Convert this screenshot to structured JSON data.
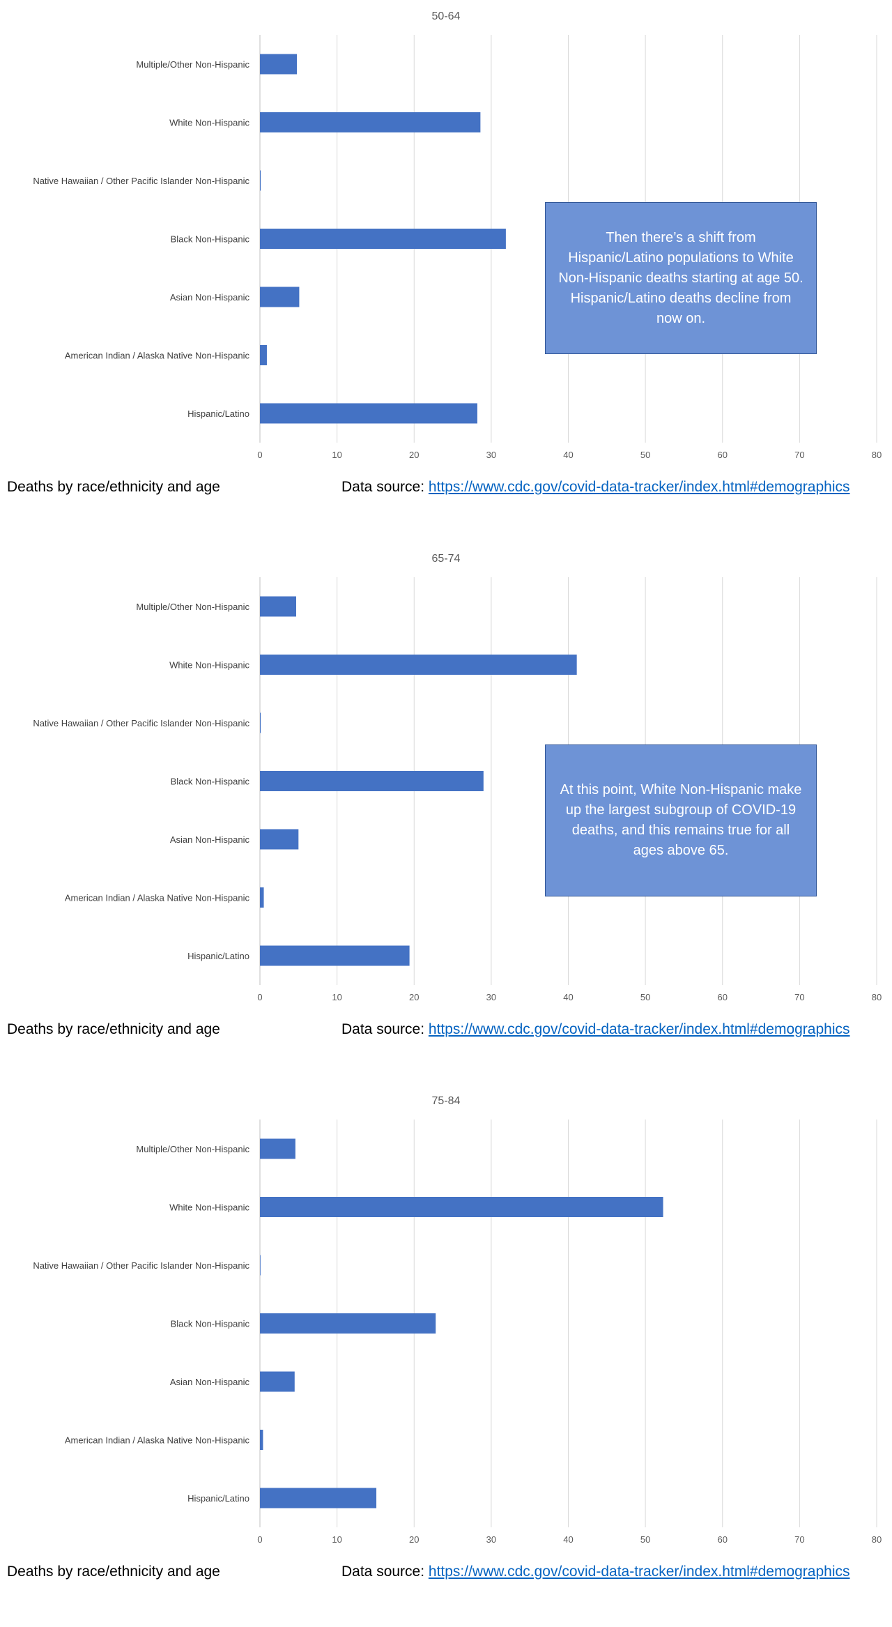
{
  "footer": {
    "caption": "Deaths by race/ethnicity and age",
    "source_label": "Data source:",
    "source_link": "https://www.cdc.gov/covid-data-tracker/index.html#demographics"
  },
  "colors": {
    "bar": "#4472c4",
    "callout_fill": "#6e93d6",
    "callout_border": "#2f5597",
    "link": "#0563c1"
  },
  "chart_data": [
    {
      "type": "bar",
      "orientation": "horizontal",
      "title": "50-64",
      "categories": [
        "Hispanic/Latino",
        "American Indian / Alaska Native Non-Hispanic",
        "Asian Non-Hispanic",
        "Black Non-Hispanic",
        "Native Hawaiian / Other Pacific Islander Non-Hispanic",
        "White Non-Hispanic",
        "Multiple/Other Non-Hispanic"
      ],
      "values": [
        28.2,
        0.9,
        5.1,
        31.9,
        0.1,
        28.6,
        4.8
      ],
      "xlim": [
        0,
        80
      ],
      "xticks": [
        "0",
        "10",
        "20",
        "30",
        "40",
        "50",
        "60",
        "70",
        "80"
      ],
      "grid": true,
      "annotation": "Then there’s a shift from Hispanic/Latino populations to White Non-Hispanic deaths starting at age 50. Hispanic/Latino deaths decline from now on."
    },
    {
      "type": "bar",
      "orientation": "horizontal",
      "title": "65-74",
      "categories": [
        "Hispanic/Latino",
        "American Indian / Alaska Native Non-Hispanic",
        "Asian Non-Hispanic",
        "Black Non-Hispanic",
        "Native Hawaiian / Other Pacific Islander Non-Hispanic",
        "White Non-Hispanic",
        "Multiple/Other Non-Hispanic"
      ],
      "values": [
        19.4,
        0.5,
        5.0,
        29.0,
        0.1,
        41.1,
        4.7
      ],
      "xlim": [
        0,
        80
      ],
      "xticks": [
        "0",
        "10",
        "20",
        "30",
        "40",
        "50",
        "60",
        "70",
        "80"
      ],
      "grid": true,
      "annotation": "At this point, White Non-Hispanic make up the largest subgroup of COVID-19 deaths, and this remains true for all ages above 65."
    },
    {
      "type": "bar",
      "orientation": "horizontal",
      "title": "75-84",
      "categories": [
        "Hispanic/Latino",
        "American Indian / Alaska Native Non-Hispanic",
        "Asian Non-Hispanic",
        "Black Non-Hispanic",
        "Native Hawaiian / Other Pacific Islander Non-Hispanic",
        "White Non-Hispanic",
        "Multiple/Other Non-Hispanic"
      ],
      "values": [
        15.1,
        0.4,
        4.5,
        22.8,
        0.05,
        52.3,
        4.6
      ],
      "xlim": [
        0,
        80
      ],
      "xticks": [
        "0",
        "10",
        "20",
        "30",
        "40",
        "50",
        "60",
        "70",
        "80"
      ],
      "grid": true,
      "annotation": ""
    }
  ]
}
